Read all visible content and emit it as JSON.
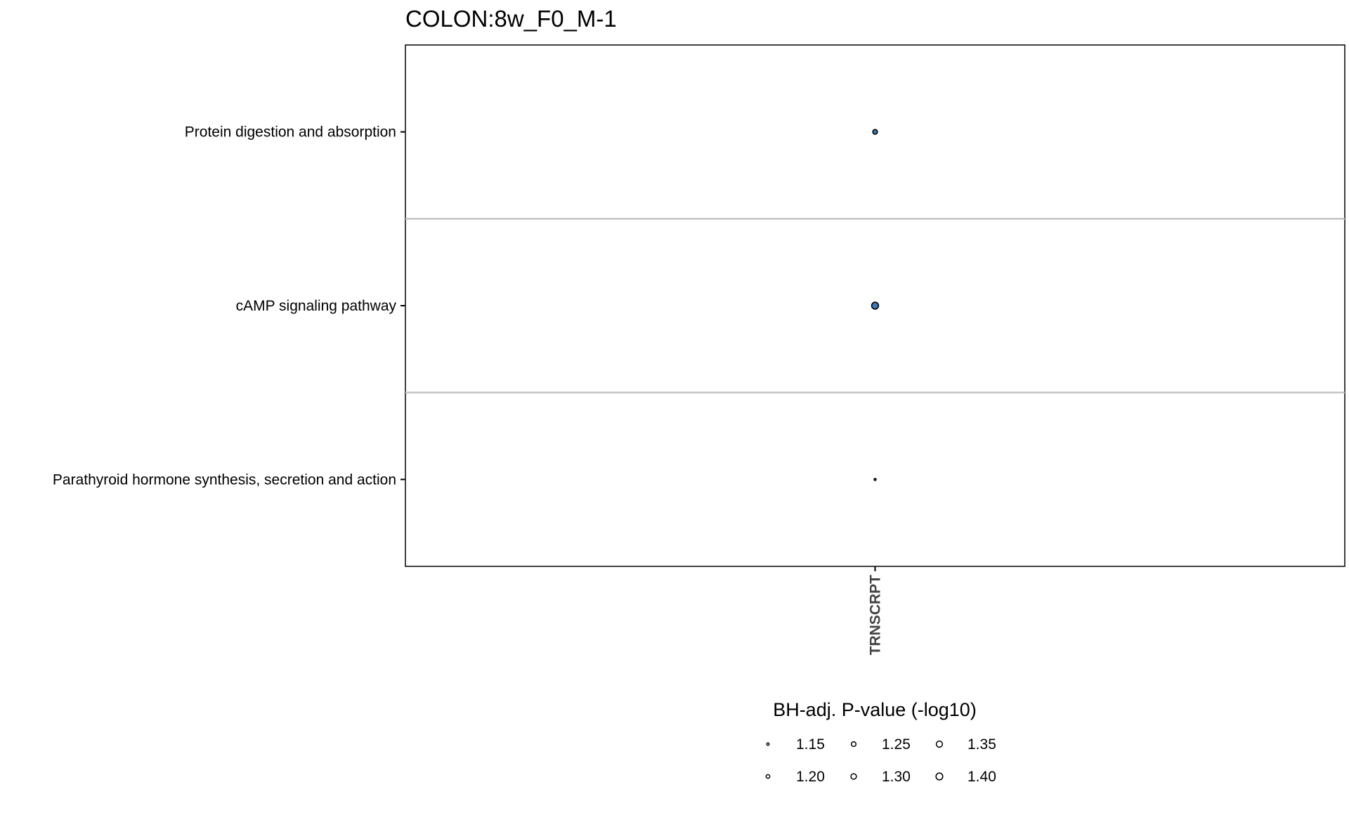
{
  "chart_data": {
    "type": "scatter",
    "title": "COLON:8w_F0_M-1",
    "x_categories": [
      "TRNSCRPT"
    ],
    "y_categories": [
      "Protein digestion and absorption",
      "cAMP signaling pathway",
      "Parathyroid hormone synthesis, secretion and action"
    ],
    "points": [
      {
        "x": "TRNSCRPT",
        "y": "Protein digestion and absorption",
        "size_value": 1.25
      },
      {
        "x": "TRNSCRPT",
        "y": "cAMP signaling pathway",
        "size_value": 1.41
      },
      {
        "x": "TRNSCRPT",
        "y": "Parathyroid hormone synthesis, secretion and action",
        "size_value": 1.14
      }
    ],
    "size_legend": {
      "title": "BH-adj. P-value (-log10)",
      "breaks": [
        1.15,
        1.2,
        1.25,
        1.3,
        1.35,
        1.4
      ],
      "labels": [
        "1.15",
        "1.20",
        "1.25",
        "1.30",
        "1.35",
        "1.40"
      ],
      "position": "bottom"
    },
    "grid": "horizontal separators between rows",
    "point_fill": "#3a7ab7",
    "point_stroke": "#000000"
  }
}
